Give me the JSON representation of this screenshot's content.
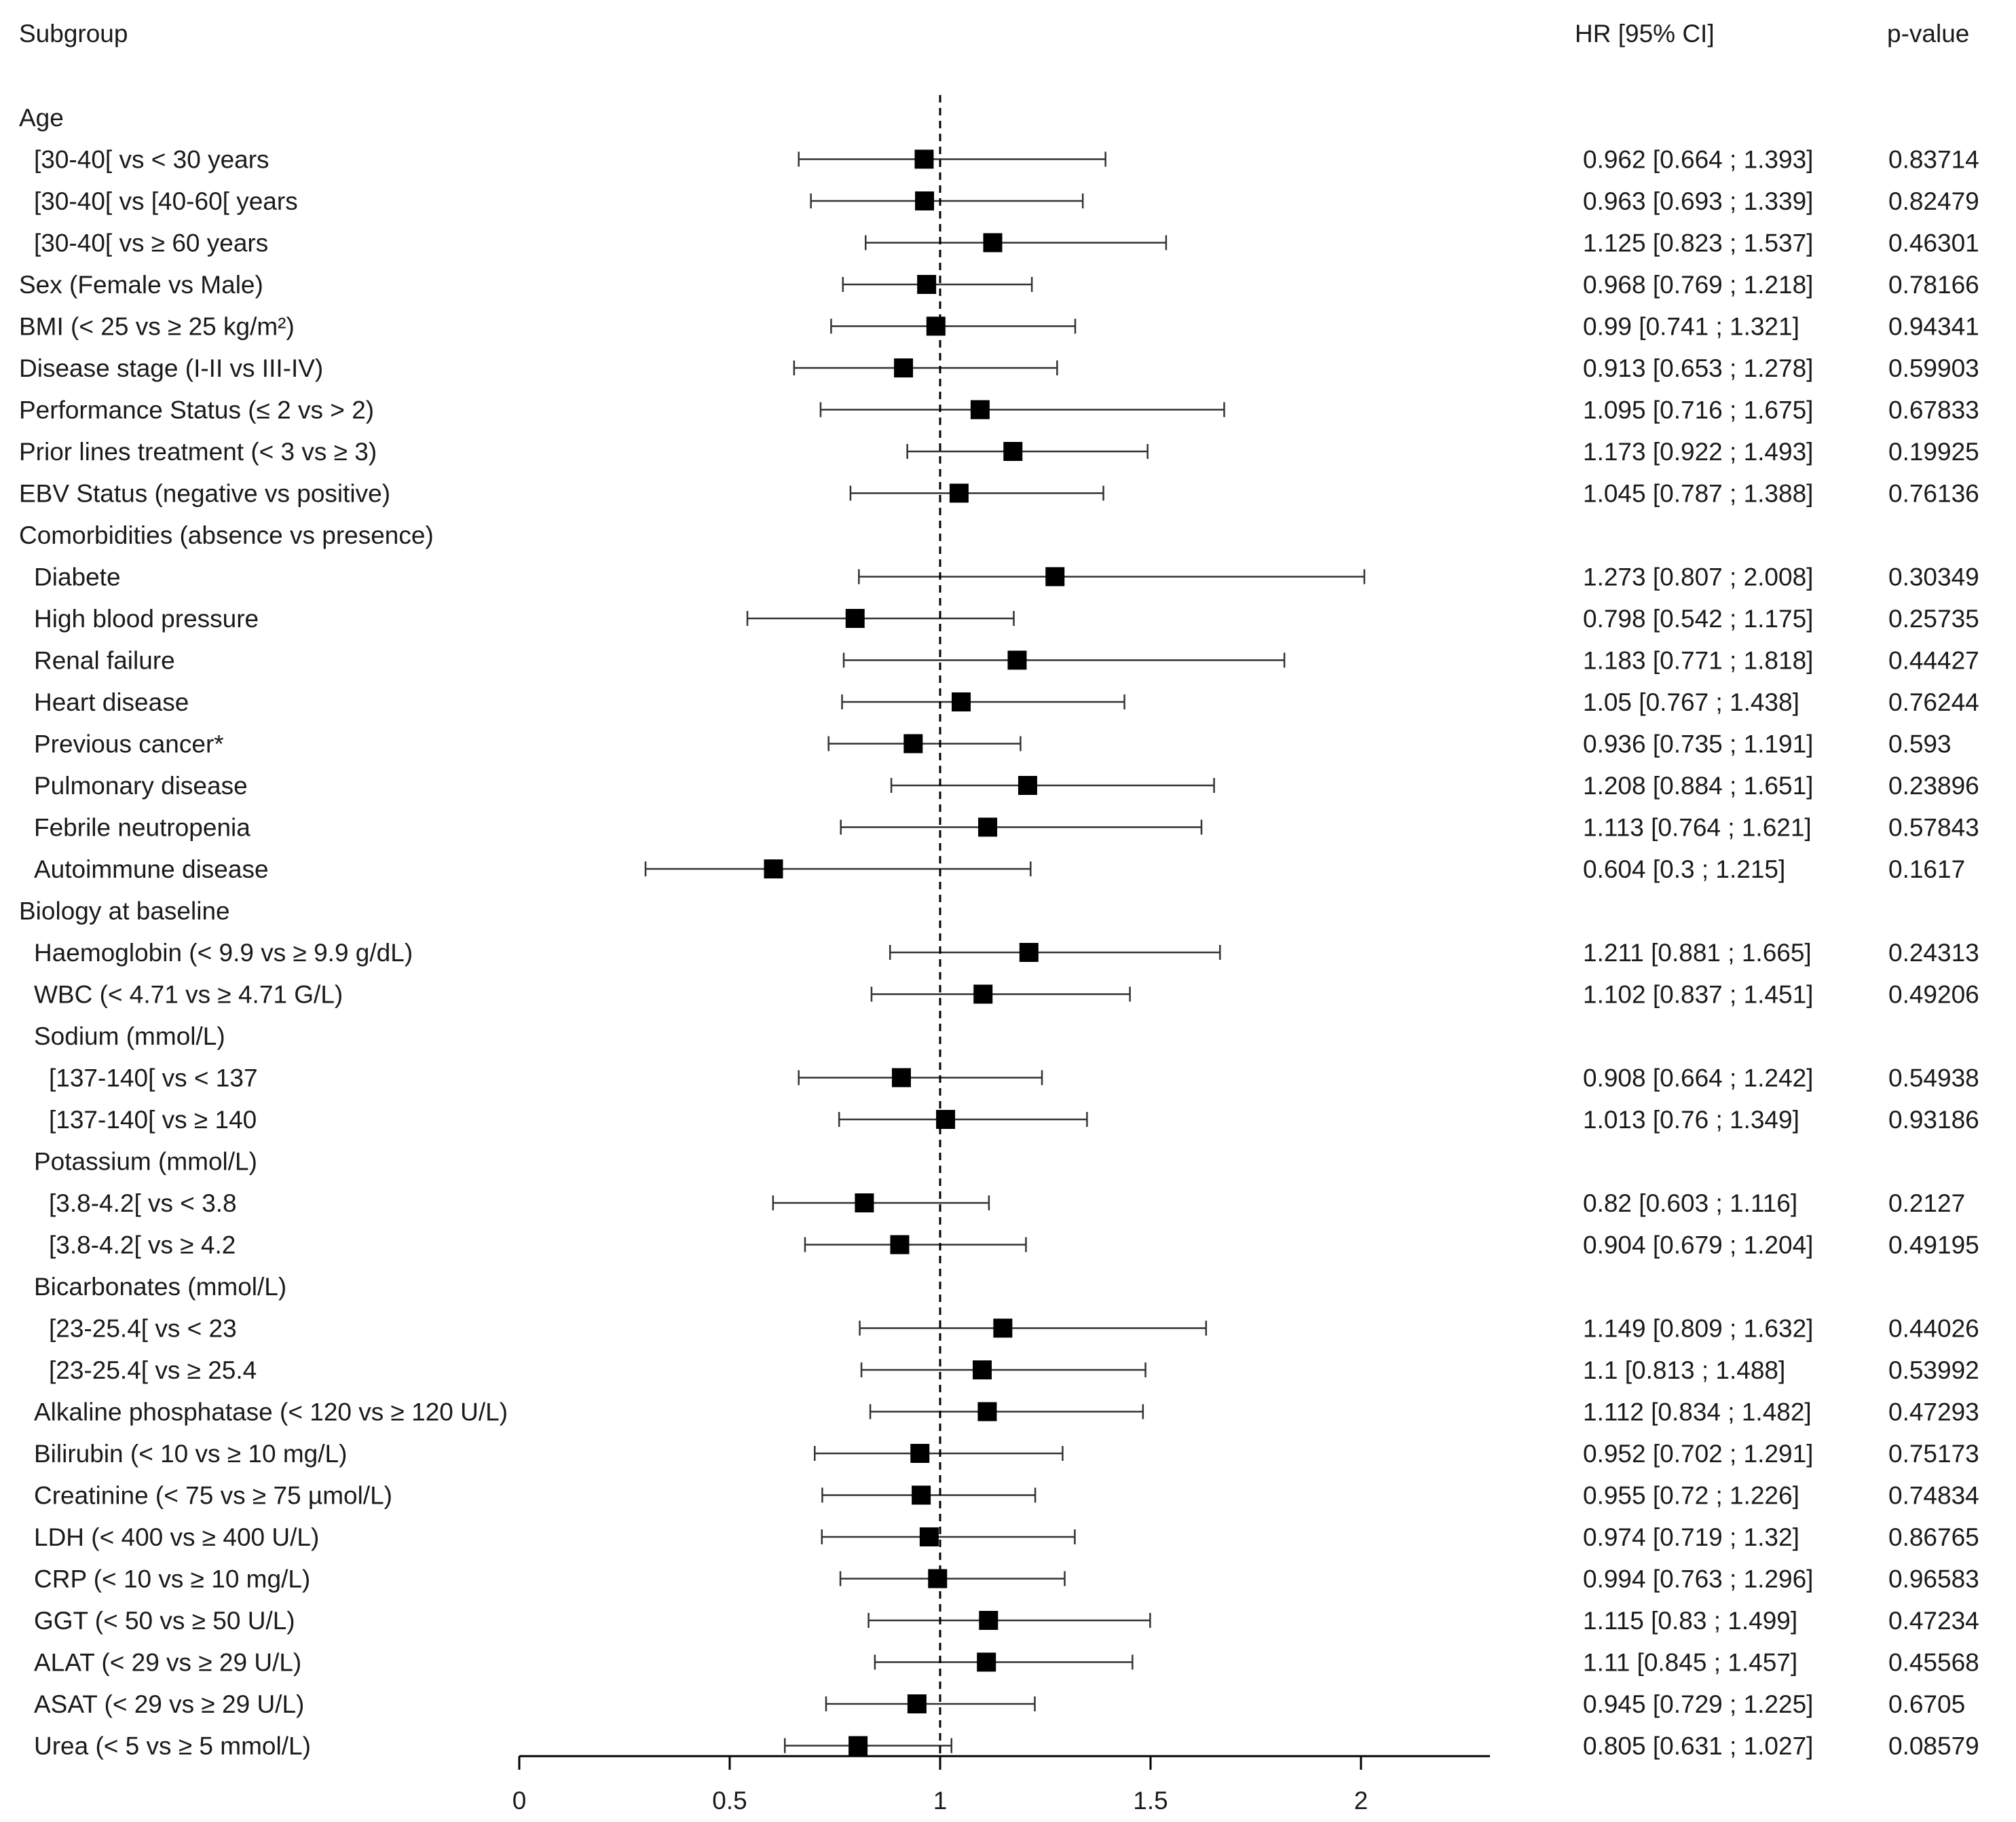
{
  "chart_data": {
    "type": "forest",
    "columns": {
      "subgroup": "Subgroup",
      "hr": "HR [95% CI]",
      "p": "p-value"
    },
    "xlim": [
      0,
      2.3
    ],
    "reference_line": 1,
    "xticks": [
      0,
      0.5,
      1,
      1.5,
      2
    ],
    "xtick_labels": [
      "0",
      "0.5",
      "1",
      "1.5",
      "2"
    ],
    "rows": [
      {
        "label": "Age",
        "indent": 0,
        "header": true
      },
      {
        "label": "[30-40[ vs < 30 years",
        "indent": 1,
        "hr": 0.962,
        "lo": 0.664,
        "hi": 1.393,
        "hr_text": "0.962 [0.664 ; 1.393]",
        "p": "0.83714"
      },
      {
        "label": "[30-40[ vs [40-60[ years",
        "indent": 1,
        "hr": 0.963,
        "lo": 0.693,
        "hi": 1.339,
        "hr_text": "0.963 [0.693 ; 1.339]",
        "p": "0.82479"
      },
      {
        "label": "[30-40[ vs ≥ 60 years",
        "indent": 1,
        "hr": 1.125,
        "lo": 0.823,
        "hi": 1.537,
        "hr_text": "1.125 [0.823 ; 1.537]",
        "p": "0.46301"
      },
      {
        "label": "Sex (Female vs Male)",
        "indent": 0,
        "hr": 0.968,
        "lo": 0.769,
        "hi": 1.218,
        "hr_text": "0.968 [0.769 ; 1.218]",
        "p": "0.78166"
      },
      {
        "label": "BMI (< 25 vs ≥ 25 kg/m²)",
        "indent": 0,
        "hr": 0.99,
        "lo": 0.741,
        "hi": 1.321,
        "hr_text": "0.99 [0.741 ; 1.321]",
        "p": "0.94341"
      },
      {
        "label": "Disease stage (I-II vs III-IV)",
        "indent": 0,
        "hr": 0.913,
        "lo": 0.653,
        "hi": 1.278,
        "hr_text": "0.913 [0.653 ; 1.278]",
        "p": "0.59903"
      },
      {
        "label": "Performance Status (≤ 2 vs > 2)",
        "indent": 0,
        "hr": 1.095,
        "lo": 0.716,
        "hi": 1.675,
        "hr_text": "1.095 [0.716 ; 1.675]",
        "p": "0.67833"
      },
      {
        "label": "Prior lines treatment (< 3 vs ≥ 3)",
        "indent": 0,
        "hr": 1.173,
        "lo": 0.922,
        "hi": 1.493,
        "hr_text": "1.173 [0.922 ; 1.493]",
        "p": "0.19925"
      },
      {
        "label": "EBV Status (negative vs positive)",
        "indent": 0,
        "hr": 1.045,
        "lo": 0.787,
        "hi": 1.388,
        "hr_text": "1.045 [0.787 ; 1.388]",
        "p": "0.76136"
      },
      {
        "label": "Comorbidities (absence vs presence)",
        "indent": 0,
        "header": true
      },
      {
        "label": "Diabete",
        "indent": 1,
        "hr": 1.273,
        "lo": 0.807,
        "hi": 2.008,
        "hr_text": "1.273 [0.807 ; 2.008]",
        "p": "0.30349"
      },
      {
        "label": "High blood pressure",
        "indent": 1,
        "hr": 0.798,
        "lo": 0.542,
        "hi": 1.175,
        "hr_text": "0.798 [0.542 ; 1.175]",
        "p": "0.25735"
      },
      {
        "label": "Renal failure",
        "indent": 1,
        "hr": 1.183,
        "lo": 0.771,
        "hi": 1.818,
        "hr_text": "1.183 [0.771 ; 1.818]",
        "p": "0.44427"
      },
      {
        "label": "Heart disease",
        "indent": 1,
        "hr": 1.05,
        "lo": 0.767,
        "hi": 1.438,
        "hr_text": "1.05 [0.767 ; 1.438]",
        "p": "0.76244"
      },
      {
        "label": "Previous cancer*",
        "indent": 1,
        "hr": 0.936,
        "lo": 0.735,
        "hi": 1.191,
        "hr_text": "0.936 [0.735 ; 1.191]",
        "p": "0.593"
      },
      {
        "label": "Pulmonary disease",
        "indent": 1,
        "hr": 1.208,
        "lo": 0.884,
        "hi": 1.651,
        "hr_text": "1.208 [0.884 ; 1.651]",
        "p": "0.23896"
      },
      {
        "label": "Febrile neutropenia",
        "indent": 1,
        "hr": 1.113,
        "lo": 0.764,
        "hi": 1.621,
        "hr_text": "1.113 [0.764 ; 1.621]",
        "p": "0.57843"
      },
      {
        "label": "Autoimmune disease",
        "indent": 1,
        "hr": 0.604,
        "lo": 0.3,
        "hi": 1.215,
        "hr_text": "0.604 [0.3 ; 1.215]",
        "p": "0.1617"
      },
      {
        "label": "Biology at baseline",
        "indent": 0,
        "header": true
      },
      {
        "label": "Haemoglobin (< 9.9 vs ≥ 9.9 g/dL)",
        "indent": 1,
        "hr": 1.211,
        "lo": 0.881,
        "hi": 1.665,
        "hr_text": "1.211 [0.881 ; 1.665]",
        "p": "0.24313"
      },
      {
        "label": "WBC (< 4.71 vs ≥ 4.71 G/L)",
        "indent": 1,
        "hr": 1.102,
        "lo": 0.837,
        "hi": 1.451,
        "hr_text": "1.102 [0.837 ; 1.451]",
        "p": "0.49206"
      },
      {
        "label": "Sodium (mmol/L)",
        "indent": 1,
        "header": true
      },
      {
        "label": "[137-140[ vs < 137",
        "indent": 2,
        "hr": 0.908,
        "lo": 0.664,
        "hi": 1.242,
        "hr_text": "0.908 [0.664 ; 1.242]",
        "p": "0.54938"
      },
      {
        "label": "[137-140[ vs ≥ 140",
        "indent": 2,
        "hr": 1.013,
        "lo": 0.76,
        "hi": 1.349,
        "hr_text": "1.013 [0.76 ; 1.349]",
        "p": "0.93186"
      },
      {
        "label": "Potassium (mmol/L)",
        "indent": 1,
        "header": true
      },
      {
        "label": "[3.8-4.2[ vs < 3.8",
        "indent": 2,
        "hr": 0.82,
        "lo": 0.603,
        "hi": 1.116,
        "hr_text": "0.82 [0.603 ; 1.116]",
        "p": "0.2127"
      },
      {
        "label": "[3.8-4.2[ vs ≥ 4.2",
        "indent": 2,
        "hr": 0.904,
        "lo": 0.679,
        "hi": 1.204,
        "hr_text": "0.904 [0.679 ; 1.204]",
        "p": "0.49195"
      },
      {
        "label": "Bicarbonates (mmol/L)",
        "indent": 1,
        "header": true
      },
      {
        "label": "[23-25.4[ vs < 23",
        "indent": 2,
        "hr": 1.149,
        "lo": 0.809,
        "hi": 1.632,
        "hr_text": "1.149 [0.809 ; 1.632]",
        "p": "0.44026"
      },
      {
        "label": "[23-25.4[ vs ≥ 25.4",
        "indent": 2,
        "hr": 1.1,
        "lo": 0.813,
        "hi": 1.488,
        "hr_text": "1.1 [0.813 ; 1.488]",
        "p": "0.53992"
      },
      {
        "label": "Alkaline phosphatase (< 120 vs ≥ 120 U/L)",
        "indent": 1,
        "hr": 1.112,
        "lo": 0.834,
        "hi": 1.482,
        "hr_text": "1.112 [0.834 ; 1.482]",
        "p": "0.47293"
      },
      {
        "label": "Bilirubin (< 10 vs ≥ 10 mg/L)",
        "indent": 1,
        "hr": 0.952,
        "lo": 0.702,
        "hi": 1.291,
        "hr_text": "0.952 [0.702 ; 1.291]",
        "p": "0.75173"
      },
      {
        "label": "Creatinine (< 75 vs ≥ 75 µmol/L)",
        "indent": 1,
        "hr": 0.955,
        "lo": 0.72,
        "hi": 1.226,
        "hr_text": "0.955 [0.72 ; 1.226]",
        "p": "0.74834"
      },
      {
        "label": "LDH (< 400 vs ≥ 400 U/L)",
        "indent": 1,
        "hr": 0.974,
        "lo": 0.719,
        "hi": 1.32,
        "hr_text": "0.974 [0.719 ; 1.32]",
        "p": "0.86765"
      },
      {
        "label": "CRP (< 10 vs ≥ 10 mg/L)",
        "indent": 1,
        "hr": 0.994,
        "lo": 0.763,
        "hi": 1.296,
        "hr_text": "0.994 [0.763 ; 1.296]",
        "p": "0.96583"
      },
      {
        "label": "GGT (< 50 vs ≥ 50 U/L)",
        "indent": 1,
        "hr": 1.115,
        "lo": 0.83,
        "hi": 1.499,
        "hr_text": "1.115 [0.83 ; 1.499]",
        "p": "0.47234"
      },
      {
        "label": "ALAT (< 29 vs ≥ 29 U/L)",
        "indent": 1,
        "hr": 1.11,
        "lo": 0.845,
        "hi": 1.457,
        "hr_text": "1.11 [0.845 ; 1.457]",
        "p": "0.45568"
      },
      {
        "label": "ASAT (< 29 vs ≥ 29 U/L)",
        "indent": 1,
        "hr": 0.945,
        "lo": 0.729,
        "hi": 1.225,
        "hr_text": "0.945 [0.729 ; 1.225]",
        "p": "0.6705"
      },
      {
        "label": "Urea (< 5 vs ≥ 5 mmol/L)",
        "indent": 1,
        "hr": 0.805,
        "lo": 0.631,
        "hi": 1.027,
        "hr_text": "0.805 [0.631 ; 1.027]",
        "p": "0.08579"
      }
    ]
  }
}
